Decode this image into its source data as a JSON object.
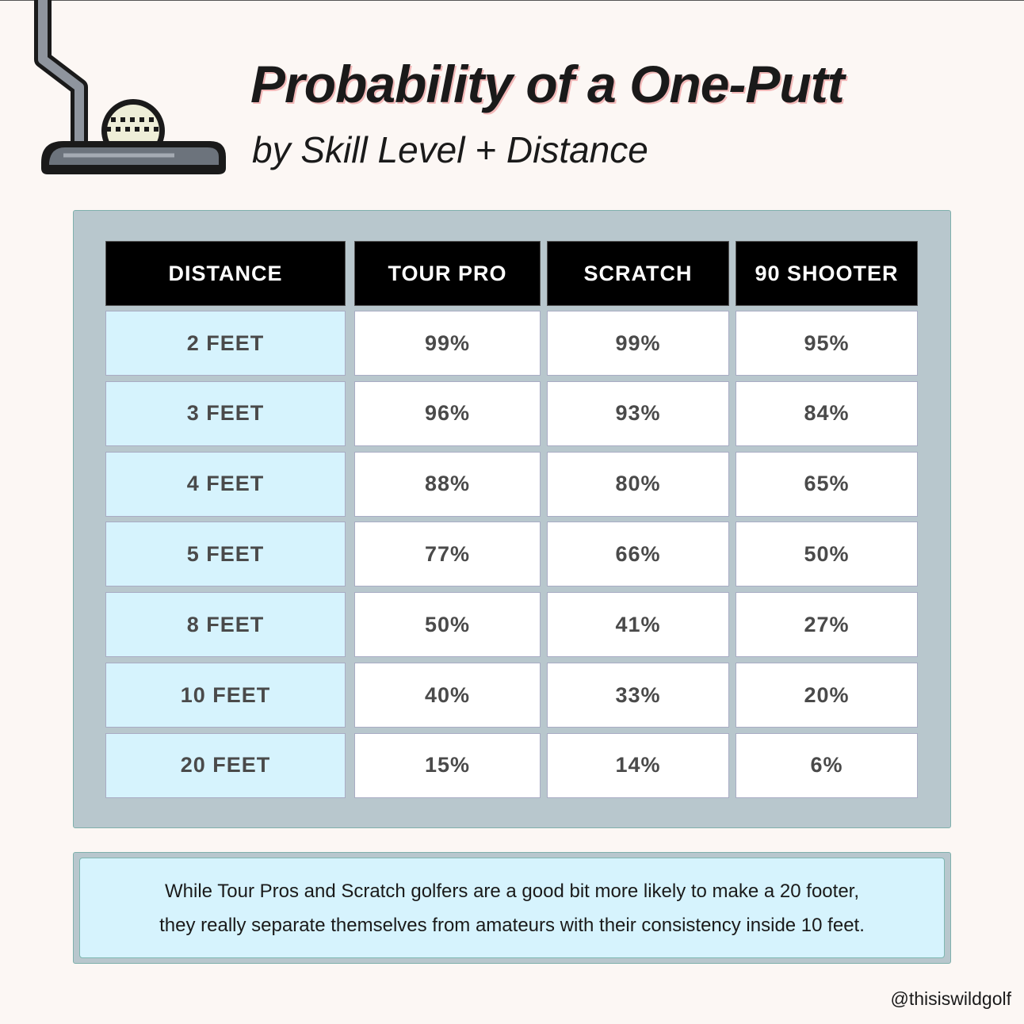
{
  "header": {
    "title": "Probability of a One-Putt",
    "subtitle": "by Skill Level + Distance"
  },
  "table": {
    "columns": [
      "DISTANCE",
      "TOUR PRO",
      "SCRATCH",
      "90 SHOOTER"
    ],
    "rows": [
      [
        "2 FEET",
        "99%",
        "99%",
        "95%"
      ],
      [
        "3 FEET",
        "96%",
        "93%",
        "84%"
      ],
      [
        "4 FEET",
        "88%",
        "80%",
        "65%"
      ],
      [
        "5 FEET",
        "77%",
        "66%",
        "50%"
      ],
      [
        "8 FEET",
        "50%",
        "41%",
        "27%"
      ],
      [
        "10 FEET",
        "40%",
        "33%",
        "20%"
      ],
      [
        "20 FEET",
        "15%",
        "14%",
        "6%"
      ]
    ]
  },
  "note": {
    "lines": [
      "While Tour Pros and Scratch golfers are a good bit more likely to make a 20 footer,",
      "they really separate themselves from amateurs with their consistency inside 10 feet."
    ]
  },
  "footer": {
    "handle": "@thisiswildgolf"
  }
}
